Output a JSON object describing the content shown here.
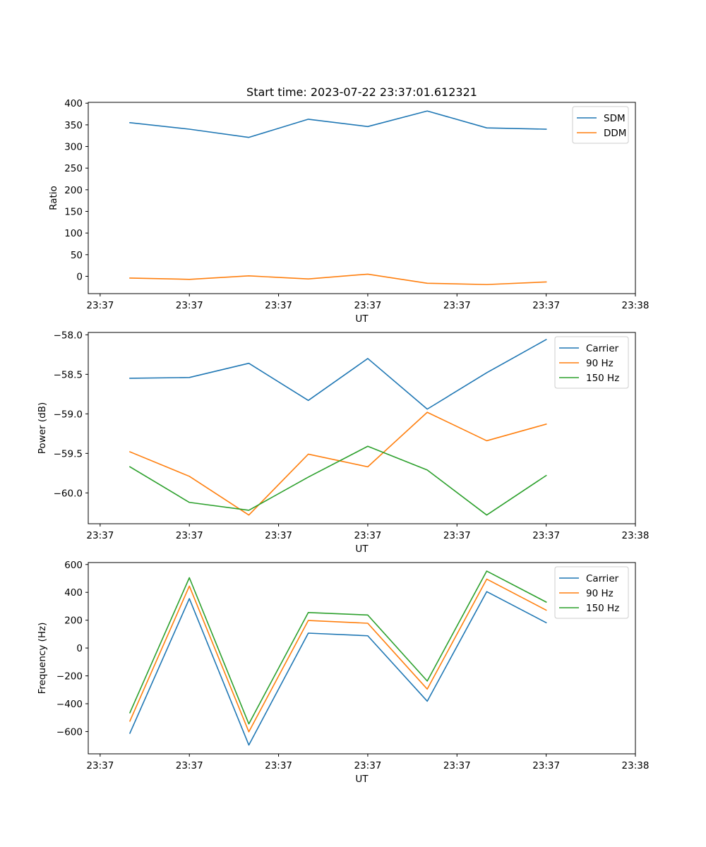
{
  "title": "Start time: 2023-07-22 23:37:01.612321",
  "colors": {
    "blue": "#1f77b4",
    "orange": "#ff7f0e",
    "green": "#2ca02c"
  },
  "chart_data": [
    {
      "type": "line",
      "title": "Start time: 2023-07-22 23:37:01.612321",
      "xlabel": "UT",
      "ylabel": "Ratio",
      "x_tick_labels": [
        "23:37",
        "23:37",
        "23:37",
        "23:37",
        "23:37",
        "23:37",
        "23:38"
      ],
      "x_tick_index": [
        -0.5,
        1,
        2.5,
        4,
        5.5,
        7,
        8.5
      ],
      "xlim": [
        -0.7,
        8.5
      ],
      "ylim": [
        -40,
        402
      ],
      "yticks": [
        0,
        50,
        100,
        150,
        200,
        250,
        300,
        350,
        400
      ],
      "ytick_labels": [
        "0",
        "50",
        "100",
        "150",
        "200",
        "250",
        "300",
        "350",
        "400"
      ],
      "legend_position": "upper-right",
      "series": [
        {
          "name": "SDM",
          "color": "#1f77b4",
          "values": [
            355,
            340,
            321,
            363,
            346,
            382,
            343,
            340
          ]
        },
        {
          "name": "DDM",
          "color": "#ff7f0e",
          "values": [
            -4,
            -7,
            1,
            -6,
            5,
            -16,
            -19,
            -13
          ]
        }
      ]
    },
    {
      "type": "line",
      "xlabel": "UT",
      "ylabel": "Power (dB)",
      "x_tick_labels": [
        "23:37",
        "23:37",
        "23:37",
        "23:37",
        "23:37",
        "23:37",
        "23:38"
      ],
      "x_tick_index": [
        -0.5,
        1,
        2.5,
        4,
        5.5,
        7,
        8.5
      ],
      "xlim": [
        -0.7,
        8.5
      ],
      "ylim": [
        -60.39,
        -57.97
      ],
      "yticks": [
        -60.0,
        -59.5,
        -59.0,
        -58.5,
        -58.0
      ],
      "ytick_labels": [
        "−60.0",
        "−59.5",
        "−59.0",
        "−58.5",
        "−58.0"
      ],
      "legend_position": "upper-right",
      "series": [
        {
          "name": "Carrier",
          "color": "#1f77b4",
          "values": [
            -58.55,
            -58.54,
            -58.36,
            -58.83,
            -58.3,
            -58.94,
            -58.48,
            -58.06
          ]
        },
        {
          "name": "90 Hz",
          "color": "#ff7f0e",
          "values": [
            -59.48,
            -59.79,
            -60.28,
            -59.51,
            -59.67,
            -58.98,
            -59.34,
            -59.13
          ]
        },
        {
          "name": "150 Hz",
          "color": "#2ca02c",
          "values": [
            -59.67,
            -60.12,
            -60.22,
            -59.8,
            -59.41,
            -59.71,
            -60.28,
            -59.78
          ]
        }
      ]
    },
    {
      "type": "line",
      "xlabel": "UT",
      "ylabel": "Frequency (Hz)",
      "x_tick_labels": [
        "23:37",
        "23:37",
        "23:37",
        "23:37",
        "23:37",
        "23:37",
        "23:38"
      ],
      "x_tick_index": [
        -0.5,
        1,
        2.5,
        4,
        5.5,
        7,
        8.5
      ],
      "xlim": [
        -0.7,
        8.5
      ],
      "ylim": [
        -760,
        614
      ],
      "yticks": [
        -600,
        -400,
        -200,
        0,
        200,
        400,
        600
      ],
      "ytick_labels": [
        "−600",
        "−400",
        "−200",
        "0",
        "200",
        "400",
        "600"
      ],
      "legend_position": "upper-right",
      "series": [
        {
          "name": "Carrier",
          "color": "#1f77b4",
          "values": [
            -612,
            355,
            -697,
            107,
            88,
            -382,
            405,
            182
          ]
        },
        {
          "name": "90 Hz",
          "color": "#ff7f0e",
          "values": [
            -525,
            445,
            -602,
            198,
            178,
            -295,
            495,
            272
          ]
        },
        {
          "name": "150 Hz",
          "color": "#2ca02c",
          "values": [
            -465,
            505,
            -545,
            255,
            237,
            -237,
            553,
            330
          ]
        }
      ]
    }
  ]
}
